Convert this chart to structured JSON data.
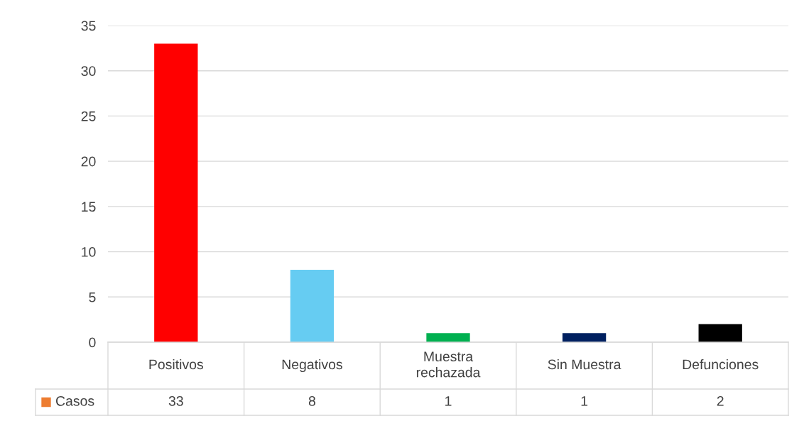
{
  "chart_data": {
    "type": "bar",
    "categories": [
      "Positivos",
      "Negativos",
      "Muestra\nrechazada",
      "Sin Muestra",
      "Defunciones"
    ],
    "series": [
      {
        "name": "Casos",
        "color": "#ed7d31",
        "colors": [
          "#ff0000",
          "#66ccf2",
          "#00b050",
          "#002060",
          "#000000"
        ],
        "values": [
          33,
          8,
          1,
          1,
          2
        ]
      }
    ],
    "ylim": [
      0,
      35
    ],
    "yticks": [
      0,
      5,
      10,
      15,
      20,
      25,
      30,
      35
    ],
    "grid": "y",
    "data_labels": true,
    "legend": "bottom"
  }
}
